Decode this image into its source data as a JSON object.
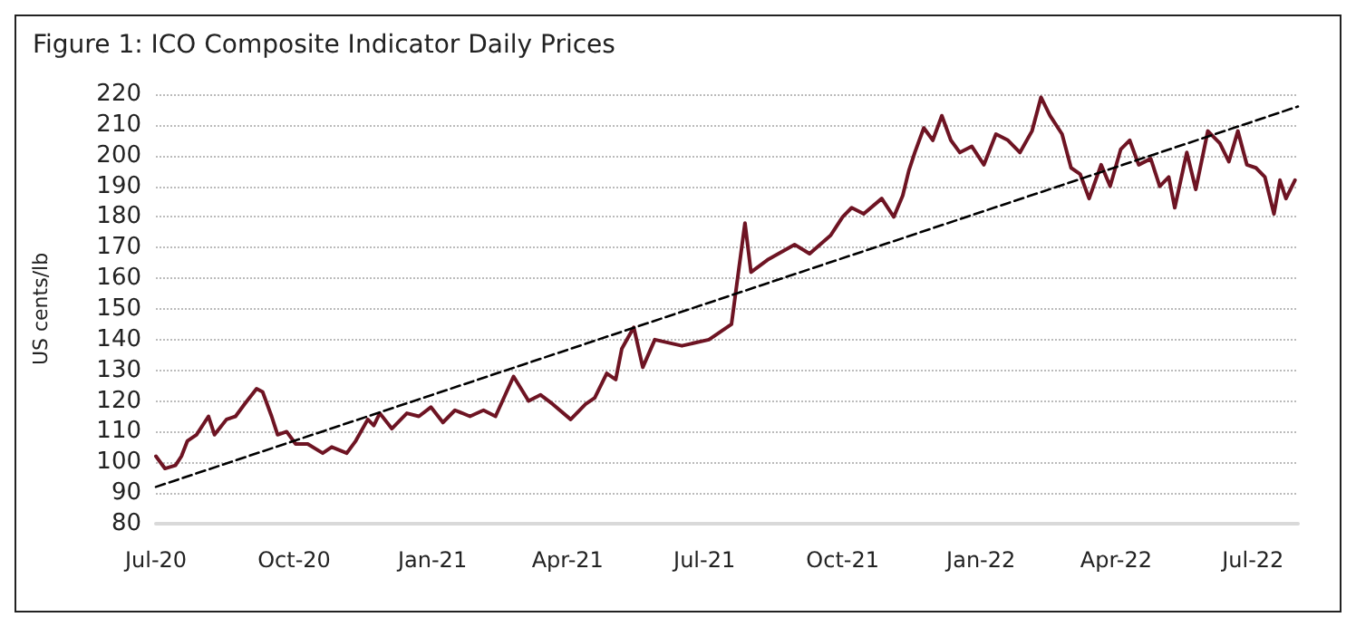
{
  "chart_data": {
    "type": "line",
    "title": "Figure 1: ICO Composite Indicator Daily Prices",
    "ylabel": "US cents/lb",
    "xlim": [
      "2020-07-01",
      "2022-07-31"
    ],
    "xticks": [
      {
        "value": "2020-07-01",
        "label": "Jul-20"
      },
      {
        "value": "2020-10-01",
        "label": "Oct-20"
      },
      {
        "value": "2021-01-01",
        "label": "Jan-21"
      },
      {
        "value": "2021-04-01",
        "label": "Apr-21"
      },
      {
        "value": "2021-07-01",
        "label": "Jul-21"
      },
      {
        "value": "2021-10-01",
        "label": "Oct-21"
      },
      {
        "value": "2022-01-01",
        "label": "Jan-22"
      },
      {
        "value": "2022-04-01",
        "label": "Apr-22"
      },
      {
        "value": "2022-07-01",
        "label": "Jul-22"
      }
    ],
    "ylim": [
      80,
      220
    ],
    "yticks": [
      80,
      90,
      100,
      110,
      120,
      130,
      140,
      150,
      160,
      170,
      180,
      190,
      200,
      210,
      220
    ],
    "grid": "y",
    "marker": "none",
    "series": [
      {
        "color": "#6e1423",
        "line_style": "solid",
        "x": [
          "2020-07-01",
          "2020-07-07",
          "2020-07-14",
          "2020-07-18",
          "2020-07-22",
          "2020-07-28",
          "2020-08-05",
          "2020-08-09",
          "2020-08-17",
          "2020-08-23",
          "2020-08-29",
          "2020-09-06",
          "2020-09-10",
          "2020-09-16",
          "2020-09-20",
          "2020-09-26",
          "2020-10-02",
          "2020-10-10",
          "2020-10-20",
          "2020-10-26",
          "2020-11-05",
          "2020-11-11",
          "2020-11-19",
          "2020-11-23",
          "2020-11-27",
          "2020-12-05",
          "2020-12-15",
          "2020-12-23",
          "2020-12-31",
          "2021-01-08",
          "2021-01-16",
          "2021-01-26",
          "2021-02-04",
          "2021-02-12",
          "2021-02-24",
          "2021-03-06",
          "2021-03-14",
          "2021-03-22",
          "2021-04-03",
          "2021-04-13",
          "2021-04-19",
          "2021-04-27",
          "2021-05-03",
          "2021-05-07",
          "2021-05-15",
          "2021-05-21",
          "2021-05-29",
          "2021-06-16",
          "2021-07-04",
          "2021-07-19",
          "2021-07-28",
          "2021-08-01",
          "2021-08-12",
          "2021-08-30",
          "2021-09-09",
          "2021-09-23",
          "2021-10-01",
          "2021-10-07",
          "2021-10-15",
          "2021-10-27",
          "2021-11-04",
          "2021-11-10",
          "2021-11-14",
          "2021-11-18",
          "2021-11-24",
          "2021-11-30",
          "2021-12-06",
          "2021-12-12",
          "2021-12-18",
          "2021-12-26",
          "2022-01-03",
          "2022-01-11",
          "2022-01-19",
          "2022-01-27",
          "2022-02-04",
          "2022-02-10",
          "2022-02-16",
          "2022-02-24",
          "2022-03-02",
          "2022-03-08",
          "2022-03-14",
          "2022-03-22",
          "2022-03-28",
          "2022-04-04",
          "2022-04-10",
          "2022-04-16",
          "2022-04-24",
          "2022-04-30",
          "2022-05-06",
          "2022-05-10",
          "2022-05-18",
          "2022-05-24",
          "2022-06-01",
          "2022-06-09",
          "2022-06-15",
          "2022-06-21",
          "2022-06-27",
          "2022-07-03",
          "2022-07-09",
          "2022-07-15",
          "2022-07-19",
          "2022-07-23",
          "2022-07-29"
        ],
        "values": [
          102,
          98,
          99,
          102,
          107,
          109,
          115,
          109,
          114,
          115,
          119,
          124,
          123,
          115,
          109,
          110,
          106,
          106,
          103,
          105,
          103,
          107,
          114,
          112,
          116,
          111,
          116,
          115,
          118,
          113,
          117,
          115,
          117,
          115,
          128,
          120,
          122,
          119,
          114,
          119,
          121,
          129,
          127,
          137,
          144,
          131,
          140,
          138,
          140,
          145,
          178,
          162,
          166,
          171,
          168,
          174,
          180,
          183,
          181,
          186,
          180,
          187,
          195,
          201,
          209,
          205,
          213,
          205,
          201,
          203,
          197,
          207,
          205,
          201,
          208,
          219,
          213,
          207,
          196,
          194,
          186,
          197,
          190,
          202,
          205,
          197,
          199,
          190,
          193,
          183,
          201,
          189,
          208,
          204,
          198,
          208,
          197,
          196,
          193,
          181,
          192,
          186,
          192
        ]
      },
      {
        "type": "line",
        "color": "#000000",
        "line_style": "dashed",
        "x": [
          "2020-07-01",
          "2022-07-31"
        ],
        "values": [
          92,
          216
        ]
      }
    ]
  }
}
